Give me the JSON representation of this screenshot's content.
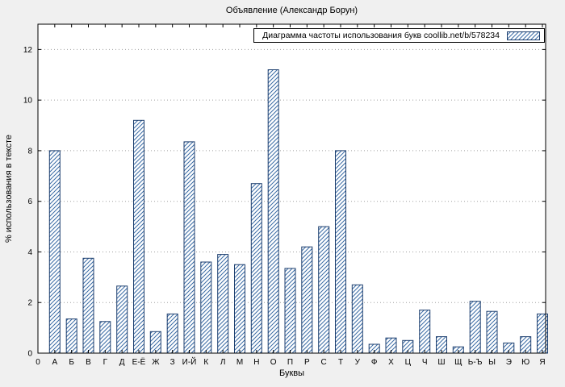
{
  "chart_data": {
    "type": "bar",
    "title": "Объявление (Александр Борун)",
    "legend": "Диаграмма частоты использования букв coollib.net/b/578234",
    "xlabel": "Буквы",
    "ylabel": "% использования в тексте",
    "origin_label": "0",
    "categories": [
      "А",
      "Б",
      "В",
      "Г",
      "Д",
      "Е-Ё",
      "Ж",
      "З",
      "И-Й",
      "К",
      "Л",
      "М",
      "Н",
      "О",
      "П",
      "Р",
      "С",
      "Т",
      "У",
      "Ф",
      "Х",
      "Ц",
      "Ч",
      "Ш",
      "Щ",
      "Ь-Ъ",
      "Ы",
      "Э",
      "Ю",
      "Я"
    ],
    "values": [
      8.0,
      1.35,
      3.75,
      1.25,
      2.65,
      9.2,
      0.85,
      1.55,
      8.35,
      3.6,
      3.9,
      3.5,
      6.7,
      11.2,
      3.35,
      4.2,
      5.0,
      8.0,
      2.7,
      0.35,
      0.6,
      0.5,
      1.7,
      0.65,
      0.25,
      2.05,
      1.65,
      0.4,
      0.65,
      1.55
    ],
    "ylim": [
      0,
      13
    ],
    "yticks": [
      0,
      2,
      4,
      6,
      8,
      10,
      12
    ],
    "grid": "horizontal-dotted",
    "legend_position": "top-right",
    "colors": {
      "background": "#f0f0f0",
      "plot_background": "#ffffff",
      "bar_fill": "#ffffff",
      "bar_hatch": "#3a6ba5",
      "bar_border": "#1c3e6e",
      "grid": "#a0a0a0",
      "text": "#000000"
    }
  }
}
